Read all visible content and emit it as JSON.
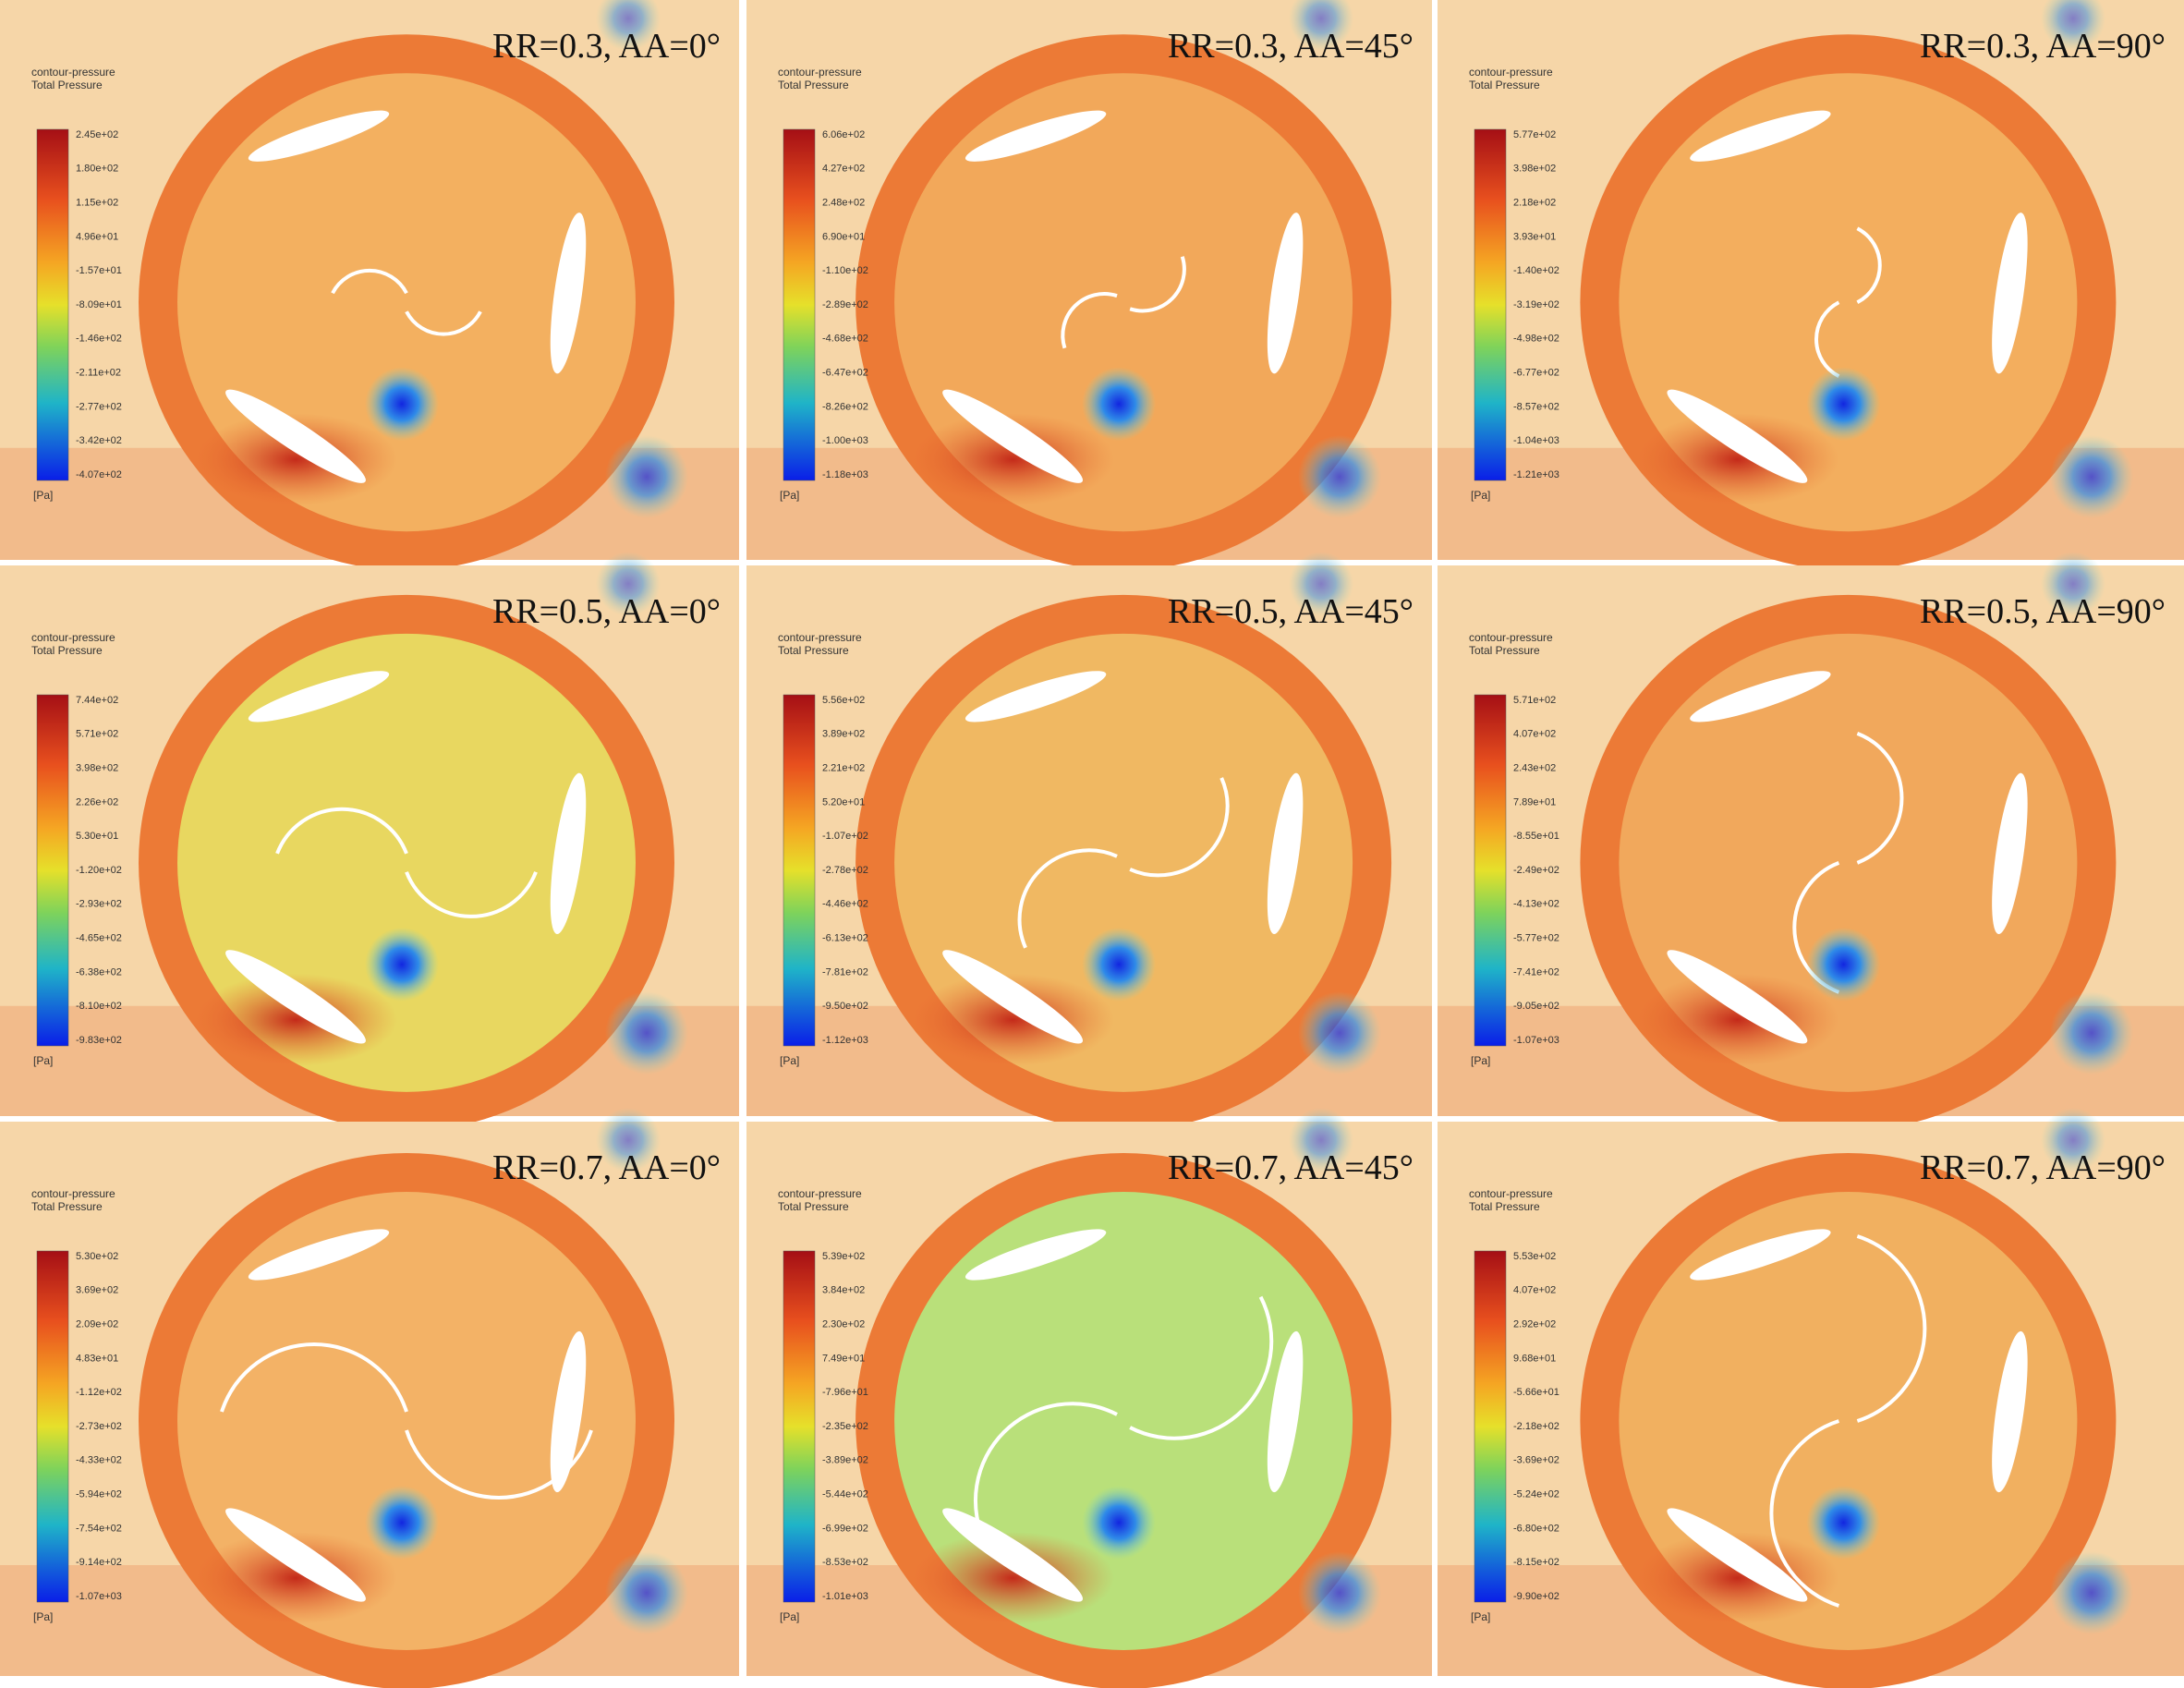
{
  "panels": [
    {
      "label": "RR=0.3, AA=0°",
      "legend_title": "contour-pressure",
      "legend_subtitle": "Total Pressure",
      "unit": "[Pa]",
      "ticks": [
        "2.45e+02",
        "1.80e+02",
        "1.15e+02",
        "4.96e+01",
        "-1.57e+01",
        "-8.09e+01",
        "-1.46e+02",
        "-2.11e+02",
        "-2.77e+02",
        "-3.42e+02",
        "-4.07e+02"
      ]
    },
    {
      "label": "RR=0.3, AA=45°",
      "legend_title": "contour-pressure",
      "legend_subtitle": "Total Pressure",
      "unit": "[Pa]",
      "ticks": [
        "6.06e+02",
        "4.27e+02",
        "2.48e+02",
        "6.90e+01",
        "-1.10e+02",
        "-2.89e+02",
        "-4.68e+02",
        "-6.47e+02",
        "-8.26e+02",
        "-1.00e+03",
        "-1.18e+03"
      ]
    },
    {
      "label": "RR=0.3, AA=90°",
      "legend_title": "contour-pressure",
      "legend_subtitle": "Total Pressure",
      "unit": "[Pa]",
      "ticks": [
        "5.77e+02",
        "3.98e+02",
        "2.18e+02",
        "3.93e+01",
        "-1.40e+02",
        "-3.19e+02",
        "-4.98e+02",
        "-6.77e+02",
        "-8.57e+02",
        "-1.04e+03",
        "-1.21e+03"
      ]
    },
    {
      "label": "RR=0.5, AA=0°",
      "legend_title": "contour-pressure",
      "legend_subtitle": "Total Pressure",
      "unit": "[Pa]",
      "ticks": [
        "7.44e+02",
        "5.71e+02",
        "3.98e+02",
        "2.26e+02",
        "5.30e+01",
        "-1.20e+02",
        "-2.93e+02",
        "-4.65e+02",
        "-6.38e+02",
        "-8.10e+02",
        "-9.83e+02"
      ]
    },
    {
      "label": "RR=0.5, AA=45°",
      "legend_title": "contour-pressure",
      "legend_subtitle": "Total Pressure",
      "unit": "[Pa]",
      "ticks": [
        "5.56e+02",
        "3.89e+02",
        "2.21e+02",
        "5.20e+01",
        "-1.07e+02",
        "-2.78e+02",
        "-4.46e+02",
        "-6.13e+02",
        "-7.81e+02",
        "-9.50e+02",
        "-1.12e+03"
      ]
    },
    {
      "label": "RR=0.5, AA=90°",
      "legend_title": "contour-pressure",
      "legend_subtitle": "Total Pressure",
      "unit": "[Pa]",
      "ticks": [
        "5.71e+02",
        "4.07e+02",
        "2.43e+02",
        "7.89e+01",
        "-8.55e+01",
        "-2.49e+02",
        "-4.13e+02",
        "-5.77e+02",
        "-7.41e+02",
        "-9.05e+02",
        "-1.07e+03"
      ]
    },
    {
      "label": "RR=0.7, AA=0°",
      "legend_title": "contour-pressure",
      "legend_subtitle": "Total Pressure",
      "unit": "[Pa]",
      "ticks": [
        "5.30e+02",
        "3.69e+02",
        "2.09e+02",
        "4.83e+01",
        "-1.12e+02",
        "-2.73e+02",
        "-4.33e+02",
        "-5.94e+02",
        "-7.54e+02",
        "-9.14e+02",
        "-1.07e+03"
      ]
    },
    {
      "label": "RR=0.7, AA=45°",
      "legend_title": "contour-pressure",
      "legend_subtitle": "Total Pressure",
      "unit": "[Pa]",
      "ticks": [
        "5.39e+02",
        "3.84e+02",
        "2.30e+02",
        "7.49e+01",
        "-7.96e+01",
        "-2.35e+02",
        "-3.89e+02",
        "-5.44e+02",
        "-6.99e+02",
        "-8.53e+02",
        "-1.01e+03"
      ]
    },
    {
      "label": "RR=0.7, AA=90°",
      "legend_title": "contour-pressure",
      "legend_subtitle": "Total Pressure",
      "unit": "[Pa]",
      "ticks": [
        "5.53e+02",
        "4.07e+02",
        "2.92e+02",
        "9.68e+01",
        "-5.66e+01",
        "-2.18e+02",
        "-3.69e+02",
        "-5.24e+02",
        "-6.80e+02",
        "-8.15e+02",
        "-9.90e+02"
      ]
    }
  ]
}
